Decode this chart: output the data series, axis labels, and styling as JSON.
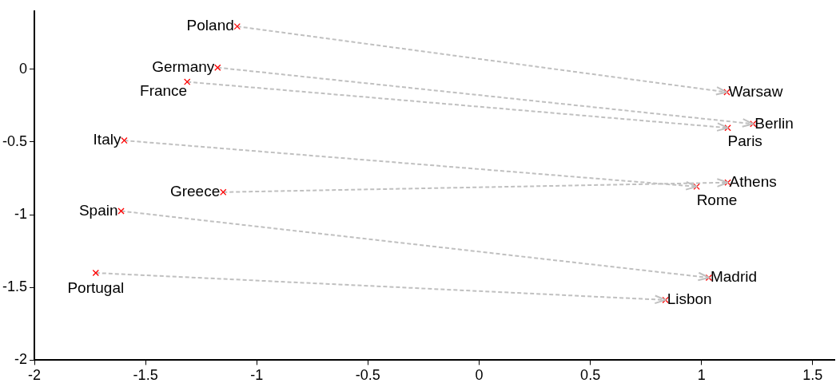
{
  "chart_data": {
    "type": "scatter",
    "xlim": [
      -2,
      1.6
    ],
    "ylim": [
      -2,
      0.4
    ],
    "xticks": [
      -2,
      -1.5,
      -1,
      -0.5,
      0,
      0.5,
      1,
      1.5
    ],
    "yticks": [
      -2,
      -1.5,
      -1,
      -0.5,
      0
    ],
    "grid": false,
    "legend": false,
    "series": [
      {
        "type": "line",
        "color": "#c0c0c0",
        "line_style": "dashed",
        "marker": "none",
        "x": [
          -1.088,
          1.114
        ],
        "values": [
          0.294,
          -0.158
        ]
      },
      {
        "type": "line",
        "color": "#c0c0c0",
        "line_style": "dashed",
        "marker": "none",
        "x": [
          -1.176,
          1.232
        ],
        "values": [
          0.011,
          -0.376
        ]
      },
      {
        "type": "line",
        "color": "#c0c0c0",
        "line_style": "dashed",
        "marker": "none",
        "x": [
          -1.313,
          1.118
        ],
        "values": [
          -0.087,
          -0.403
        ]
      },
      {
        "type": "line",
        "color": "#c0c0c0",
        "line_style": "dashed",
        "marker": "none",
        "x": [
          -1.596,
          0.978
        ],
        "values": [
          -0.49,
          -0.807
        ]
      },
      {
        "type": "line",
        "color": "#c0c0c0",
        "line_style": "dashed",
        "marker": "none",
        "x": [
          -1.151,
          1.118
        ],
        "values": [
          -0.845,
          -0.779
        ]
      },
      {
        "type": "line",
        "color": "#c0c0c0",
        "line_style": "dashed",
        "marker": "none",
        "x": [
          -1.61,
          1.033
        ],
        "values": [
          -0.975,
          -1.433
        ]
      },
      {
        "type": "line",
        "color": "#c0c0c0",
        "line_style": "dashed",
        "marker": "none",
        "x": [
          -1.724,
          0.838
        ],
        "values": [
          -1.4,
          -1.586
        ]
      },
      {
        "color": "#ff0000",
        "marker": "cross",
        "x": [
          -1.088,
          -1.176,
          -1.313,
          -1.596,
          -1.151,
          -1.61,
          -1.724,
          1.114,
          1.232,
          1.118,
          1.118,
          0.978,
          1.033,
          0.838
        ],
        "values": [
          0.294,
          0.011,
          -0.087,
          -0.49,
          -0.845,
          -0.975,
          -1.4,
          -0.158,
          -0.376,
          -0.403,
          -0.779,
          -0.807,
          -1.433,
          -1.586
        ],
        "value_labels": [
          "Poland",
          "Germany",
          "France",
          "Italy",
          "Greece",
          "Spain",
          "Portugal",
          "Warsaw",
          "Berlin",
          "Paris",
          "Athens",
          "Rome",
          "Madrid",
          "Lisbon"
        ]
      }
    ]
  }
}
